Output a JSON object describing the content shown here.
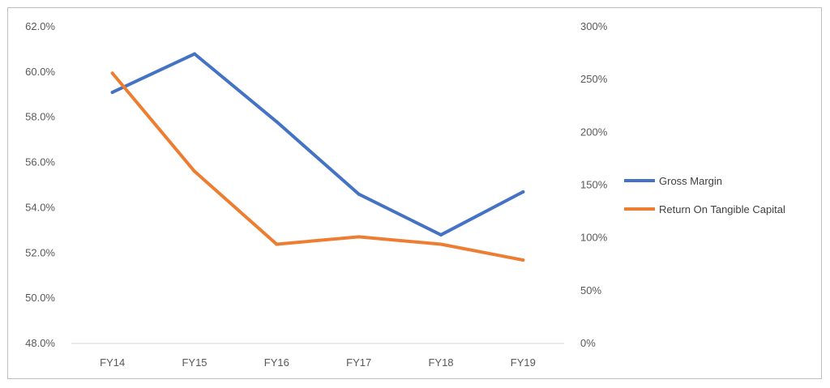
{
  "chart_data": {
    "type": "line",
    "categories": [
      "FY14",
      "FY15",
      "FY16",
      "FY17",
      "FY18",
      "FY19"
    ],
    "series": [
      {
        "name": "Gross Margin",
        "axis": "left",
        "color": "#4472C4",
        "values": [
          59.1,
          60.8,
          57.8,
          54.6,
          52.8,
          54.7
        ]
      },
      {
        "name": "Return On Tangible Capital",
        "axis": "right",
        "color": "#ED7D31",
        "values": [
          256,
          163,
          94,
          101,
          94,
          79
        ]
      }
    ],
    "y_left": {
      "lim": [
        48,
        62
      ],
      "ticks": [
        48,
        50,
        52,
        54,
        56,
        58,
        60,
        62
      ],
      "tick_labels": [
        "48.0%",
        "50.0%",
        "52.0%",
        "54.0%",
        "56.0%",
        "58.0%",
        "60.0%",
        "62.0%"
      ]
    },
    "y_right": {
      "lim": [
        0,
        300
      ],
      "ticks": [
        0,
        50,
        100,
        150,
        200,
        250,
        300
      ],
      "tick_labels": [
        "0%",
        "50%",
        "100%",
        "150%",
        "200%",
        "250%",
        "300%"
      ]
    },
    "grid": false,
    "legend": "right",
    "axis_color": "#d9d9d9"
  }
}
